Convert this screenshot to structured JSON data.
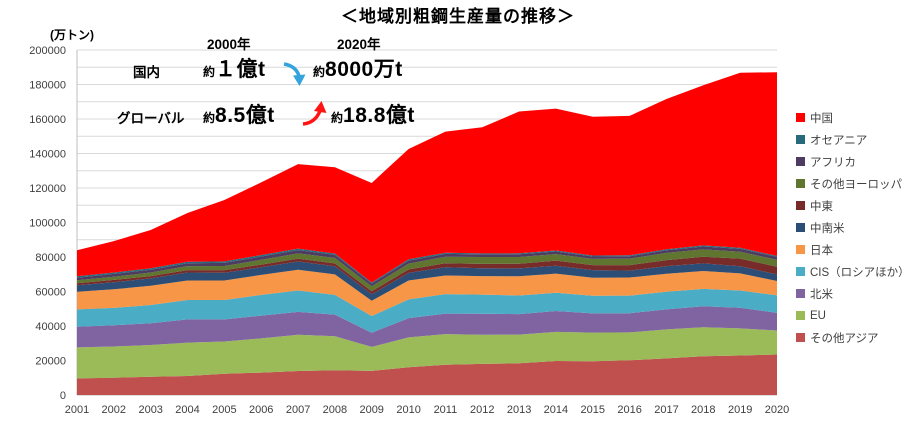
{
  "chart_data": {
    "type": "area",
    "stacked": true,
    "title": "＜地域別粗鋼生産量の推移＞",
    "unit_label": "(万トン)",
    "x": [
      2001,
      2002,
      2003,
      2004,
      2005,
      2006,
      2007,
      2008,
      2009,
      2010,
      2011,
      2012,
      2013,
      2014,
      2015,
      2016,
      2017,
      2018,
      2019,
      2020
    ],
    "ylim": [
      0,
      200000
    ],
    "ytick_step": 20000,
    "gridline_step": 10000,
    "legend_position": "right",
    "grid": true,
    "series": [
      {
        "key": "other-asia",
        "name": "その他アジア",
        "color": "#C0504D",
        "values": [
          9600,
          10000,
          10600,
          11000,
          12300,
          13000,
          13900,
          14300,
          14000,
          16100,
          17500,
          18000,
          18400,
          19700,
          19600,
          20100,
          21200,
          22500,
          22900,
          23500
        ]
      },
      {
        "key": "eu",
        "name": "EU",
        "color": "#9BBB59",
        "values": [
          18000,
          18100,
          18400,
          19400,
          18700,
          19800,
          21000,
          19800,
          13900,
          17300,
          17800,
          16900,
          16600,
          16900,
          16600,
          16200,
          16800,
          16800,
          15700,
          13900
        ]
      },
      {
        "key": "north-america",
        "name": "北米",
        "color": "#8064A2",
        "values": [
          12000,
          12300,
          12600,
          13400,
          12800,
          13200,
          13300,
          12500,
          8200,
          11200,
          11900,
          12200,
          11900,
          12100,
          11100,
          11100,
          11600,
          12100,
          12000,
          10200
        ]
      },
      {
        "key": "cis",
        "name": "CIS（ロシアほか）",
        "color": "#4BACC6",
        "values": [
          10000,
          10100,
          10600,
          11300,
          11300,
          12000,
          12400,
          11400,
          9700,
          10800,
          11300,
          11100,
          10800,
          10600,
          10200,
          10200,
          10200,
          10100,
          10000,
          10200
        ]
      },
      {
        "key": "japan",
        "name": "日本",
        "color": "#F79646",
        "values": [
          10300,
          10800,
          11100,
          11300,
          11300,
          11600,
          12000,
          11900,
          8800,
          11000,
          10800,
          10700,
          11100,
          11100,
          10500,
          10500,
          10500,
          10400,
          9900,
          8300
        ]
      },
      {
        "key": "central-south-america",
        "name": "中南米",
        "color": "#2C4D75",
        "values": [
          3700,
          4100,
          4300,
          4600,
          4500,
          4500,
          4800,
          4700,
          3800,
          4400,
          4800,
          4600,
          4600,
          4500,
          4400,
          4000,
          4400,
          4400,
          4100,
          3800
        ]
      },
      {
        "key": "middle-east",
        "name": "中東",
        "color": "#772C2A",
        "values": [
          1200,
          1300,
          1300,
          1400,
          1500,
          1500,
          1700,
          1700,
          1800,
          2000,
          2300,
          2500,
          2700,
          3000,
          2900,
          3200,
          3500,
          3900,
          4500,
          4500
        ]
      },
      {
        "key": "other-europe",
        "name": "その他ヨーロッパ",
        "color": "#5F7530",
        "values": [
          1700,
          1900,
          2100,
          2300,
          2400,
          2800,
          3000,
          3200,
          2900,
          3400,
          3800,
          4000,
          3900,
          3800,
          3600,
          3800,
          4200,
          4200,
          3900,
          4000
        ]
      },
      {
        "key": "africa",
        "name": "アフリカ",
        "color": "#4D3B62",
        "values": [
          1500,
          1600,
          1600,
          1700,
          1800,
          1900,
          1900,
          1700,
          1500,
          1700,
          1600,
          1500,
          1600,
          1500,
          1400,
          1300,
          1500,
          1700,
          1700,
          1700
        ]
      },
      {
        "key": "oceania",
        "name": "オセアニア",
        "color": "#276A7C",
        "values": [
          800,
          840,
          840,
          830,
          860,
          870,
          880,
          840,
          600,
          810,
          720,
          580,
          560,
          550,
          570,
          580,
          600,
          630,
          610,
          550
        ]
      },
      {
        "key": "china",
        "name": "中国",
        "color": "#FF0000",
        "values": [
          15100,
          18200,
          22200,
          28300,
          35600,
          42100,
          49000,
          50000,
          57700,
          63900,
          70200,
          73100,
          82200,
          82300,
          80400,
          80800,
          87100,
          92800,
          101500,
          106500
        ]
      }
    ]
  },
  "annotations": {
    "col_headers": [
      {
        "label": "2000年"
      },
      {
        "label": "2020年"
      }
    ],
    "rows": [
      {
        "label": "国内",
        "from_prefix": "約",
        "from": "１億t",
        "to_prefix": "約",
        "to": "8000万t",
        "arrow": "down",
        "arrow_color": "#35A3DC"
      },
      {
        "label": "グローバル",
        "from_prefix": "約",
        "from": "8.5億t",
        "to_prefix": "約",
        "to": "18.8億t",
        "arrow": "up",
        "arrow_color": "#FF1414"
      }
    ]
  },
  "colors": {
    "gridline": "#D9D9D9",
    "axis_line": "#BFBFBF",
    "tick_label": "#404040",
    "legend_text": "#404040"
  }
}
